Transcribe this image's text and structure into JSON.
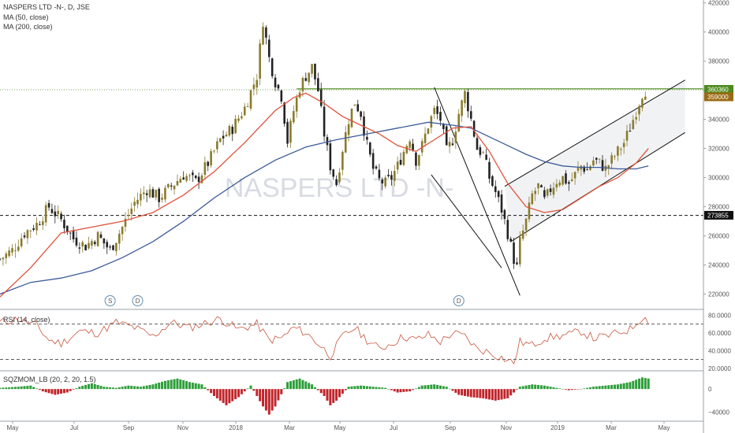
{
  "header": {
    "symbol_line": "NASPERS LTD -N-, D, JSE",
    "ma50_label": "MA (50, close)",
    "ma200_label": "MA (200, close)",
    "watermark": "NASPERS LTD -N-",
    "rsi_label": "RSI (14, close)",
    "sqz_label": "SQZMOM_LB (20, 2, 20, 1.5)"
  },
  "colors": {
    "up": "#8a7b2c",
    "down": "#222222",
    "ma50": "#e0523a",
    "ma200": "#3b5a9a",
    "resistance": "#4e8a1e",
    "rsi": "#c8553d",
    "sqz_pos": "#2e9e3a",
    "sqz_neg": "#c0262c",
    "price_tag": "#4e8a1e",
    "last_tag": "#9b6a12",
    "support_tag": "#111111"
  },
  "chart_data": [
    {
      "type": "candlestick",
      "title": "NASPERS LTD -N-, D, JSE",
      "ylim": [
        210000,
        422000
      ],
      "y_ticks": [
        220000,
        240000,
        260000,
        280000,
        300000,
        320000,
        340000,
        360000,
        380000,
        400000,
        420000
      ],
      "x_ticks": [
        "May",
        "Jul",
        "Sep",
        "Nov",
        "2018",
        "Mar",
        "May",
        "Jul",
        "Sep",
        "Nov",
        "2019",
        "Mar",
        "May"
      ],
      "close_path": [
        [
          0,
          244000
        ],
        [
          4,
          250000
        ],
        [
          8,
          262000
        ],
        [
          12,
          268000
        ],
        [
          16,
          280000
        ],
        [
          20,
          271000
        ],
        [
          24,
          258000
        ],
        [
          28,
          253000
        ],
        [
          32,
          260000
        ],
        [
          36,
          250000
        ],
        [
          40,
          266000
        ],
        [
          44,
          283000
        ],
        [
          48,
          292000
        ],
        [
          52,
          286000
        ],
        [
          56,
          294000
        ],
        [
          60,
          302000
        ],
        [
          64,
          297000
        ],
        [
          68,
          310000
        ],
        [
          72,
          326000
        ],
        [
          76,
          334000
        ],
        [
          80,
          348000
        ],
        [
          84,
          370000
        ],
        [
          86,
          408000
        ],
        [
          88,
          382000
        ],
        [
          90,
          366000
        ],
        [
          92,
          356000
        ],
        [
          94,
          325000
        ],
        [
          96,
          346000
        ],
        [
          98,
          362000
        ],
        [
          100,
          370000
        ],
        [
          102,
          376000
        ],
        [
          104,
          360000
        ],
        [
          106,
          330000
        ],
        [
          108,
          308000
        ],
        [
          110,
          296000
        ],
        [
          112,
          320000
        ],
        [
          114,
          340000
        ],
        [
          116,
          352000
        ],
        [
          118,
          344000
        ],
        [
          120,
          322000
        ],
        [
          122,
          306000
        ],
        [
          124,
          298000
        ],
        [
          126,
          296000
        ],
        [
          128,
          300000
        ],
        [
          130,
          308000
        ],
        [
          132,
          318000
        ],
        [
          134,
          328000
        ],
        [
          136,
          312000
        ],
        [
          138,
          322000
        ],
        [
          140,
          336000
        ],
        [
          142,
          346000
        ],
        [
          144,
          340000
        ],
        [
          146,
          318000
        ],
        [
          148,
          326000
        ],
        [
          150,
          344000
        ],
        [
          152,
          358000
        ],
        [
          154,
          340000
        ],
        [
          156,
          320000
        ],
        [
          158,
          316000
        ],
        [
          160,
          300000
        ],
        [
          162,
          290000
        ],
        [
          164,
          278000
        ],
        [
          166,
          262000
        ],
        [
          168,
          244000
        ],
        [
          169,
          238000
        ],
        [
          170,
          256000
        ],
        [
          172,
          270000
        ],
        [
          174,
          288000
        ],
        [
          176,
          294000
        ],
        [
          178,
          284000
        ],
        [
          180,
          292000
        ],
        [
          182,
          298000
        ],
        [
          184,
          300000
        ],
        [
          186,
          296000
        ],
        [
          188,
          302000
        ],
        [
          190,
          308000
        ],
        [
          192,
          305000
        ],
        [
          194,
          312000
        ],
        [
          196,
          310000
        ],
        [
          198,
          306000
        ],
        [
          200,
          312000
        ],
        [
          202,
          318000
        ],
        [
          204,
          324000
        ],
        [
          206,
          334000
        ],
        [
          208,
          346000
        ],
        [
          210,
          358000
        ],
        [
          211,
          360000
        ]
      ],
      "ma50_path": [
        [
          0,
          218000
        ],
        [
          10,
          238000
        ],
        [
          20,
          262000
        ],
        [
          30,
          266000
        ],
        [
          40,
          270000
        ],
        [
          50,
          276000
        ],
        [
          60,
          288000
        ],
        [
          70,
          304000
        ],
        [
          80,
          324000
        ],
        [
          90,
          346000
        ],
        [
          96,
          355000
        ],
        [
          100,
          358000
        ],
        [
          106,
          351000
        ],
        [
          112,
          342000
        ],
        [
          118,
          336000
        ],
        [
          124,
          330000
        ],
        [
          130,
          322000
        ],
        [
          136,
          318000
        ],
        [
          142,
          326000
        ],
        [
          148,
          334000
        ],
        [
          154,
          335000
        ],
        [
          160,
          318000
        ],
        [
          166,
          296000
        ],
        [
          172,
          280000
        ],
        [
          178,
          276000
        ],
        [
          184,
          278000
        ],
        [
          190,
          286000
        ],
        [
          196,
          294000
        ],
        [
          202,
          300000
        ],
        [
          208,
          310000
        ],
        [
          212,
          320000
        ]
      ],
      "ma200_path": [
        [
          0,
          220000
        ],
        [
          10,
          228000
        ],
        [
          20,
          231000
        ],
        [
          30,
          236000
        ],
        [
          40,
          245000
        ],
        [
          50,
          256000
        ],
        [
          60,
          270000
        ],
        [
          70,
          286000
        ],
        [
          80,
          300000
        ],
        [
          90,
          312000
        ],
        [
          100,
          321000
        ],
        [
          110,
          326000
        ],
        [
          120,
          330000
        ],
        [
          130,
          334000
        ],
        [
          140,
          338000
        ],
        [
          148,
          336000
        ],
        [
          154,
          334000
        ],
        [
          160,
          328000
        ],
        [
          166,
          322000
        ],
        [
          172,
          316000
        ],
        [
          178,
          311000
        ],
        [
          184,
          308000
        ],
        [
          190,
          307000
        ],
        [
          196,
          307000
        ],
        [
          202,
          306000
        ],
        [
          208,
          306000
        ],
        [
          212,
          308000
        ]
      ],
      "lines": [
        {
          "kind": "resistance",
          "from": [
            97,
            361000
          ],
          "to": [
            230,
            361000
          ]
        },
        {
          "kind": "support",
          "from": [
            0,
            274000
          ],
          "to": [
            230,
            274000
          ]
        },
        {
          "kind": "channel-down",
          "from": [
            142,
            362000
          ],
          "to": [
            170,
            219000
          ]
        },
        {
          "kind": "channel-down",
          "from": [
            141,
            302000
          ],
          "to": [
            164,
            238000
          ]
        },
        {
          "kind": "channel-up",
          "from": [
            165,
            294000
          ],
          "to": [
            224,
            367000
          ]
        },
        {
          "kind": "channel-up",
          "from": [
            167,
            256000
          ],
          "to": [
            224,
            331000
          ]
        }
      ],
      "price_tags": [
        {
          "value": 360360,
          "label": "360360",
          "color": "#4e8a1e"
        },
        {
          "value": 359000,
          "label": "359000",
          "color": "#9b6a12"
        },
        {
          "value": 273855,
          "label": "273855",
          "color": "#111111"
        }
      ],
      "events": [
        {
          "x": 36,
          "label": "S"
        },
        {
          "x": 45,
          "label": "D"
        },
        {
          "x": 150,
          "label": "D"
        }
      ]
    },
    {
      "type": "line",
      "title": "RSI (14, close)",
      "ylim": [
        18,
        84
      ],
      "y_ticks": [
        20,
        40,
        60,
        80
      ],
      "y_tick_labels": [
        "20.0000",
        "40.0000",
        "60.0000",
        "80.0000"
      ],
      "bands": [
        70,
        30
      ],
      "series": [
        {
          "values": [
            [
              0,
              72
            ],
            [
              6,
              76
            ],
            [
              12,
              68
            ],
            [
              16,
              52
            ],
            [
              20,
              48
            ],
            [
              26,
              62
            ],
            [
              32,
              60
            ],
            [
              38,
              72
            ],
            [
              44,
              66
            ],
            [
              50,
              56
            ],
            [
              56,
              72
            ],
            [
              62,
              66
            ],
            [
              66,
              70
            ],
            [
              72,
              76
            ],
            [
              78,
              64
            ],
            [
              84,
              70
            ],
            [
              88,
              52
            ],
            [
              92,
              54
            ],
            [
              96,
              66
            ],
            [
              100,
              60
            ],
            [
              104,
              48
            ],
            [
              108,
              34
            ],
            [
              112,
              56
            ],
            [
              116,
              66
            ],
            [
              120,
              52
            ],
            [
              124,
              42
            ],
            [
              128,
              48
            ],
            [
              132,
              56
            ],
            [
              136,
              52
            ],
            [
              140,
              58
            ],
            [
              144,
              50
            ],
            [
              148,
              60
            ],
            [
              152,
              56
            ],
            [
              156,
              42
            ],
            [
              160,
              38
            ],
            [
              164,
              32
            ],
            [
              168,
              26
            ],
            [
              170,
              50
            ],
            [
              174,
              46
            ],
            [
              178,
              54
            ],
            [
              182,
              56
            ],
            [
              186,
              58
            ],
            [
              190,
              62
            ],
            [
              194,
              54
            ],
            [
              198,
              56
            ],
            [
              202,
              60
            ],
            [
              206,
              64
            ],
            [
              210,
              78
            ],
            [
              212,
              74
            ]
          ]
        }
      ]
    },
    {
      "type": "bar",
      "title": "SQZMOM_LB (20, 2, 20, 1.5)",
      "ylim": [
        -54000,
        30000
      ],
      "y_ticks": [
        0,
        -40000
      ],
      "y_tick_labels": [
        "0",
        "−40000"
      ],
      "values": [
        [
          0,
          2000
        ],
        [
          6,
          4000
        ],
        [
          10,
          6000
        ],
        [
          14,
          -4000
        ],
        [
          18,
          -10000
        ],
        [
          22,
          -6000
        ],
        [
          26,
          4000
        ],
        [
          30,
          10000
        ],
        [
          34,
          4000
        ],
        [
          38,
          2000
        ],
        [
          42,
          6000
        ],
        [
          46,
          4000
        ],
        [
          50,
          8000
        ],
        [
          54,
          14000
        ],
        [
          58,
          18000
        ],
        [
          62,
          12000
        ],
        [
          66,
          8000
        ],
        [
          70,
          -12000
        ],
        [
          74,
          -28000
        ],
        [
          78,
          -14000
        ],
        [
          82,
          6000
        ],
        [
          86,
          -30000
        ],
        [
          88,
          -44000
        ],
        [
          90,
          -30000
        ],
        [
          94,
          12000
        ],
        [
          98,
          18000
        ],
        [
          102,
          8000
        ],
        [
          106,
          -12000
        ],
        [
          108,
          -28000
        ],
        [
          110,
          -20000
        ],
        [
          114,
          4000
        ],
        [
          118,
          6000
        ],
        [
          122,
          4000
        ],
        [
          126,
          2000
        ],
        [
          130,
          -6000
        ],
        [
          134,
          -4000
        ],
        [
          138,
          6000
        ],
        [
          142,
          8000
        ],
        [
          146,
          4000
        ],
        [
          150,
          -10000
        ],
        [
          154,
          -14000
        ],
        [
          158,
          -16000
        ],
        [
          162,
          -20000
        ],
        [
          166,
          -16000
        ],
        [
          170,
          4000
        ],
        [
          174,
          8000
        ],
        [
          178,
          6000
        ],
        [
          182,
          2000
        ],
        [
          186,
          -2000
        ],
        [
          190,
          0
        ],
        [
          194,
          4000
        ],
        [
          198,
          6000
        ],
        [
          202,
          8000
        ],
        [
          206,
          12000
        ],
        [
          210,
          20000
        ],
        [
          212,
          18000
        ]
      ]
    }
  ]
}
